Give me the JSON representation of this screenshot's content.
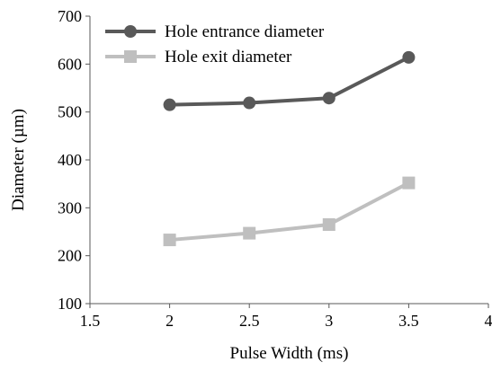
{
  "chart_data": {
    "type": "line",
    "title": "",
    "xlabel": "Pulse Width (ms)",
    "ylabel": "Diameter (µm)",
    "xlim": [
      1.5,
      4
    ],
    "ylim": [
      100,
      700
    ],
    "x_ticks": [
      "1.5",
      "2",
      "2.5",
      "3",
      "3.5",
      "4"
    ],
    "x_tick_values": [
      1.5,
      2,
      2.5,
      3,
      3.5,
      4
    ],
    "y_ticks": [
      "100",
      "200",
      "300",
      "400",
      "500",
      "600",
      "700"
    ],
    "y_tick_values": [
      100,
      200,
      300,
      400,
      500,
      600,
      700
    ],
    "grid": false,
    "legend_position": "top-left",
    "series": [
      {
        "name": "Hole entrance diameter",
        "marker": "circle",
        "color": "#595959",
        "x": [
          2,
          2.5,
          3,
          3.5
        ],
        "y": [
          515,
          519,
          529,
          614
        ]
      },
      {
        "name": "Hole exit diameter",
        "marker": "square",
        "color": "#bfbfbf",
        "x": [
          2,
          2.5,
          3,
          3.5
        ],
        "y": [
          233,
          247,
          265,
          352
        ]
      }
    ]
  }
}
